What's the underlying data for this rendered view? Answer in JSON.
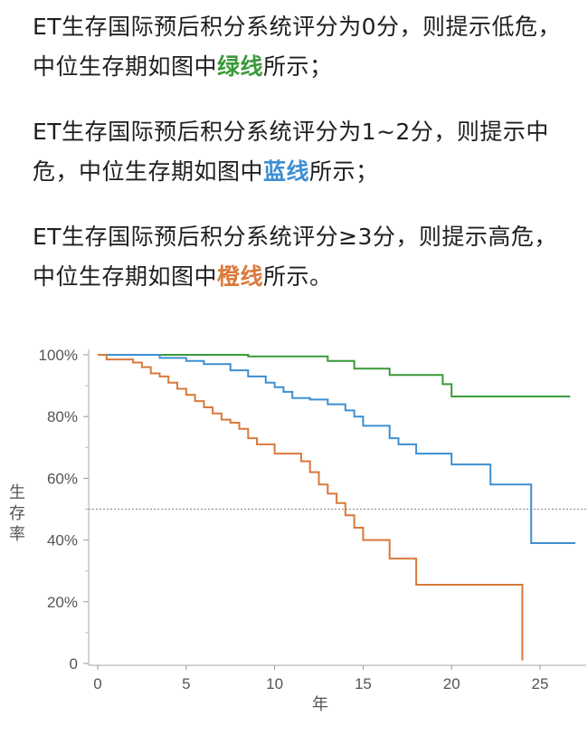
{
  "paragraphs": [
    {
      "before": "ET生存国际预后积分系统评分为0分，则提示低危，中位生存期如图中",
      "highlight": "绿线",
      "after": "所示；",
      "color": "#3a9a3a"
    },
    {
      "before": "ET生存国际预后积分系统评分为1~2分，则提示中危，中位生存期如图中",
      "highlight": "蓝线",
      "after": "所示；",
      "color": "#3d8fd1"
    },
    {
      "before": "ET生存国际预后积分系统评分≥3分，则提示高危，中位生存期如图中",
      "highlight": "橙线",
      "after": "所示。",
      "color": "#d9793a"
    }
  ],
  "chart_data": {
    "type": "line",
    "xlabel": "年",
    "ylabel": "生存率",
    "xlim": [
      0,
      27.5
    ],
    "ylim": [
      0,
      100
    ],
    "xticks": [
      "0",
      "5",
      "10",
      "15",
      "20",
      "25"
    ],
    "yticks": [
      "0",
      "20%",
      "40%",
      "60%",
      "80%",
      "100%"
    ],
    "reference_line": 50,
    "series": [
      {
        "color": "#3a9a3a",
        "step": true,
        "x": [
          0,
          8.5,
          13,
          14.5,
          16.5,
          19.5,
          20,
          26.7
        ],
        "y": [
          100,
          99.5,
          98,
          95.5,
          93.5,
          90.5,
          86.5,
          86.5
        ]
      },
      {
        "color": "#3d8fd1",
        "step": true,
        "x": [
          0,
          3.5,
          5,
          6,
          7.5,
          8.5,
          9.5,
          10,
          10.5,
          11,
          12,
          13,
          14,
          14.5,
          15,
          16.5,
          17,
          18,
          20,
          22.2,
          24.5,
          27
        ],
        "y": [
          100,
          99,
          98,
          97,
          95,
          93,
          91,
          89.5,
          88,
          86,
          85.5,
          84,
          82,
          80,
          77,
          73,
          71,
          68,
          64.5,
          58,
          39,
          39
        ]
      },
      {
        "color": "#d9793a",
        "step": true,
        "x": [
          0,
          0.5,
          2,
          2.5,
          3,
          3.5,
          4,
          4.5,
          5,
          5.5,
          6,
          6.5,
          7,
          7.5,
          8,
          8.5,
          9,
          10,
          11.5,
          12,
          12.5,
          13,
          13.5,
          14,
          14.5,
          15,
          16.5,
          18,
          24,
          24
        ],
        "y": [
          100,
          98.5,
          97.5,
          96,
          94,
          93,
          91,
          89,
          87,
          85,
          83,
          81,
          79,
          78,
          76,
          73,
          71,
          68,
          65.5,
          62,
          58,
          55,
          52,
          48,
          44,
          40,
          34,
          25.5,
          25.5,
          1
        ]
      }
    ]
  }
}
